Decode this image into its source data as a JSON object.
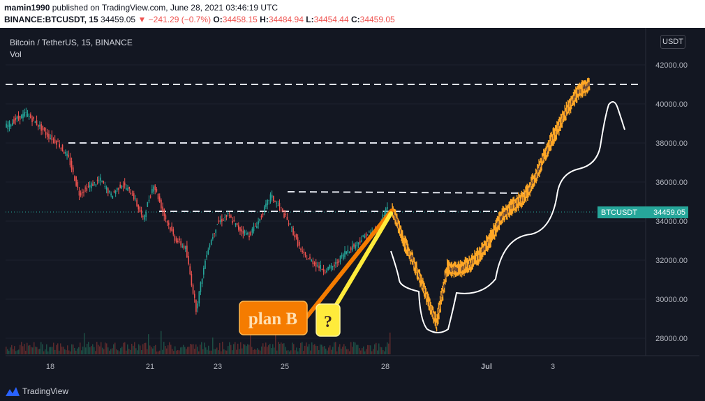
{
  "header": {
    "author": "mamin1990",
    "published_text": "published on TradingView.com, June 28, 2021 03:46:19 UTC",
    "symbol": "BINANCE:BTCUSDT, 15",
    "last": "34459.05",
    "change": "−241.29 (−0.7%)",
    "o_label": "O:",
    "o_value": "34458.15",
    "h_label": "H:",
    "h_value": "34484.94",
    "l_label": "L:",
    "l_value": "34454.44",
    "c_label": "C:",
    "c_value": "34459.05"
  },
  "legend": {
    "title": "Bitcoin / TetherUS, 15, BINANCE",
    "vol": "Vol"
  },
  "currency_button": "USDT",
  "price_tag": {
    "symbol": "BTCUSDT",
    "value": "34459.05"
  },
  "annotations": {
    "plan_b": "plan B",
    "question": "?"
  },
  "footer": {
    "brand": "TradingView"
  },
  "colors": {
    "background": "#131722",
    "up": "#26a69a",
    "down": "#ef5350",
    "projection": "#ffa726",
    "plan_b": "#f57c00",
    "question": "#ffeb3b"
  },
  "chart_data": {
    "type": "line",
    "ylim": [
      27000,
      44000
    ],
    "y_ticks": [
      {
        "value": 28000,
        "label": "28000.00"
      },
      {
        "value": 30000,
        "label": "30000.00"
      },
      {
        "value": 32000,
        "label": "32000.00"
      },
      {
        "value": 34000,
        "label": "34000.00"
      },
      {
        "value": 36000,
        "label": "36000.00"
      },
      {
        "value": 38000,
        "label": "38000.00"
      },
      {
        "value": 40000,
        "label": "40000.00"
      },
      {
        "value": 42000,
        "label": "42000.00"
      }
    ],
    "x_ticks": [
      "18",
      "21",
      "23",
      "25",
      "28",
      "Jul",
      "3"
    ],
    "series": [
      {
        "values": [
          38800,
          39200,
          39500,
          39000,
          38400,
          38000,
          37200,
          35400,
          35800,
          36100,
          35300,
          35900,
          35400,
          34100,
          35900,
          34300,
          33100,
          32600,
          29500,
          32400,
          33900,
          34300,
          33600,
          33300,
          34100,
          35300,
          34600,
          33600,
          32300,
          31900,
          31500,
          31700,
          32400,
          32800,
          33300,
          33500,
          34800
        ]
      },
      {
        "values": [
          34600,
          33000,
          31800,
          30300,
          28800,
          31600,
          31500,
          31800,
          32300,
          33200,
          34300,
          34800,
          35200,
          36200,
          37600,
          38700,
          39800,
          40700,
          41000
        ]
      }
    ],
    "levels": [
      41000,
      38000,
      35500,
      34500
    ]
  }
}
